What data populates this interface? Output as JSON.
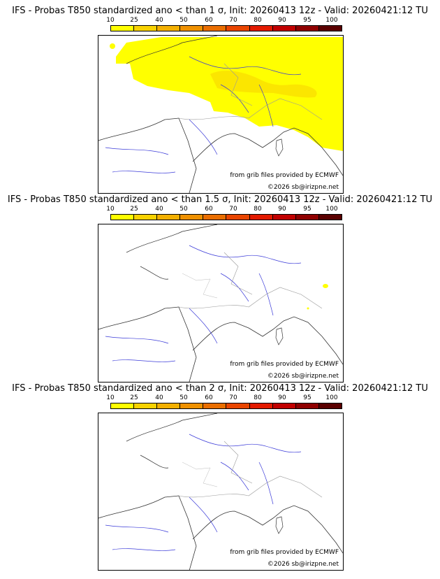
{
  "colorbar": {
    "labels": [
      "10",
      "25",
      "40",
      "50",
      "60",
      "70",
      "80",
      "90",
      "95",
      "100"
    ],
    "colors": [
      "#ffff00",
      "#f8d200",
      "#f3b000",
      "#ef9100",
      "#ea6e00",
      "#e94500",
      "#e31a00",
      "#c10000",
      "#8f0000",
      "#5a0000"
    ]
  },
  "panels": [
    {
      "title": "IFS - Probas T850  standardized ano < than 1 σ, Init: 20260413 12z - Valid: 20260421:12 TU",
      "grib_credit": "from grib files provided by ECMWF",
      "copyright": "©2026 sb@irizpne.net"
    },
    {
      "title": "IFS - Probas T850  standardized ano < than 1.5 σ, Init: 20260413 12z - Valid: 20260421:12 TU",
      "grib_credit": "from grib files provided by ECMWF",
      "copyright": "©2026 sb@irizpne.net"
    },
    {
      "title": "IFS - Probas T850  standardized ano < than 2 σ, Init: 20260413 12z - Valid: 20260421:12 TU",
      "grib_credit": "from grib files provided by ECMWF",
      "copyright": "©2026 sb@irizpne.net"
    }
  ]
}
